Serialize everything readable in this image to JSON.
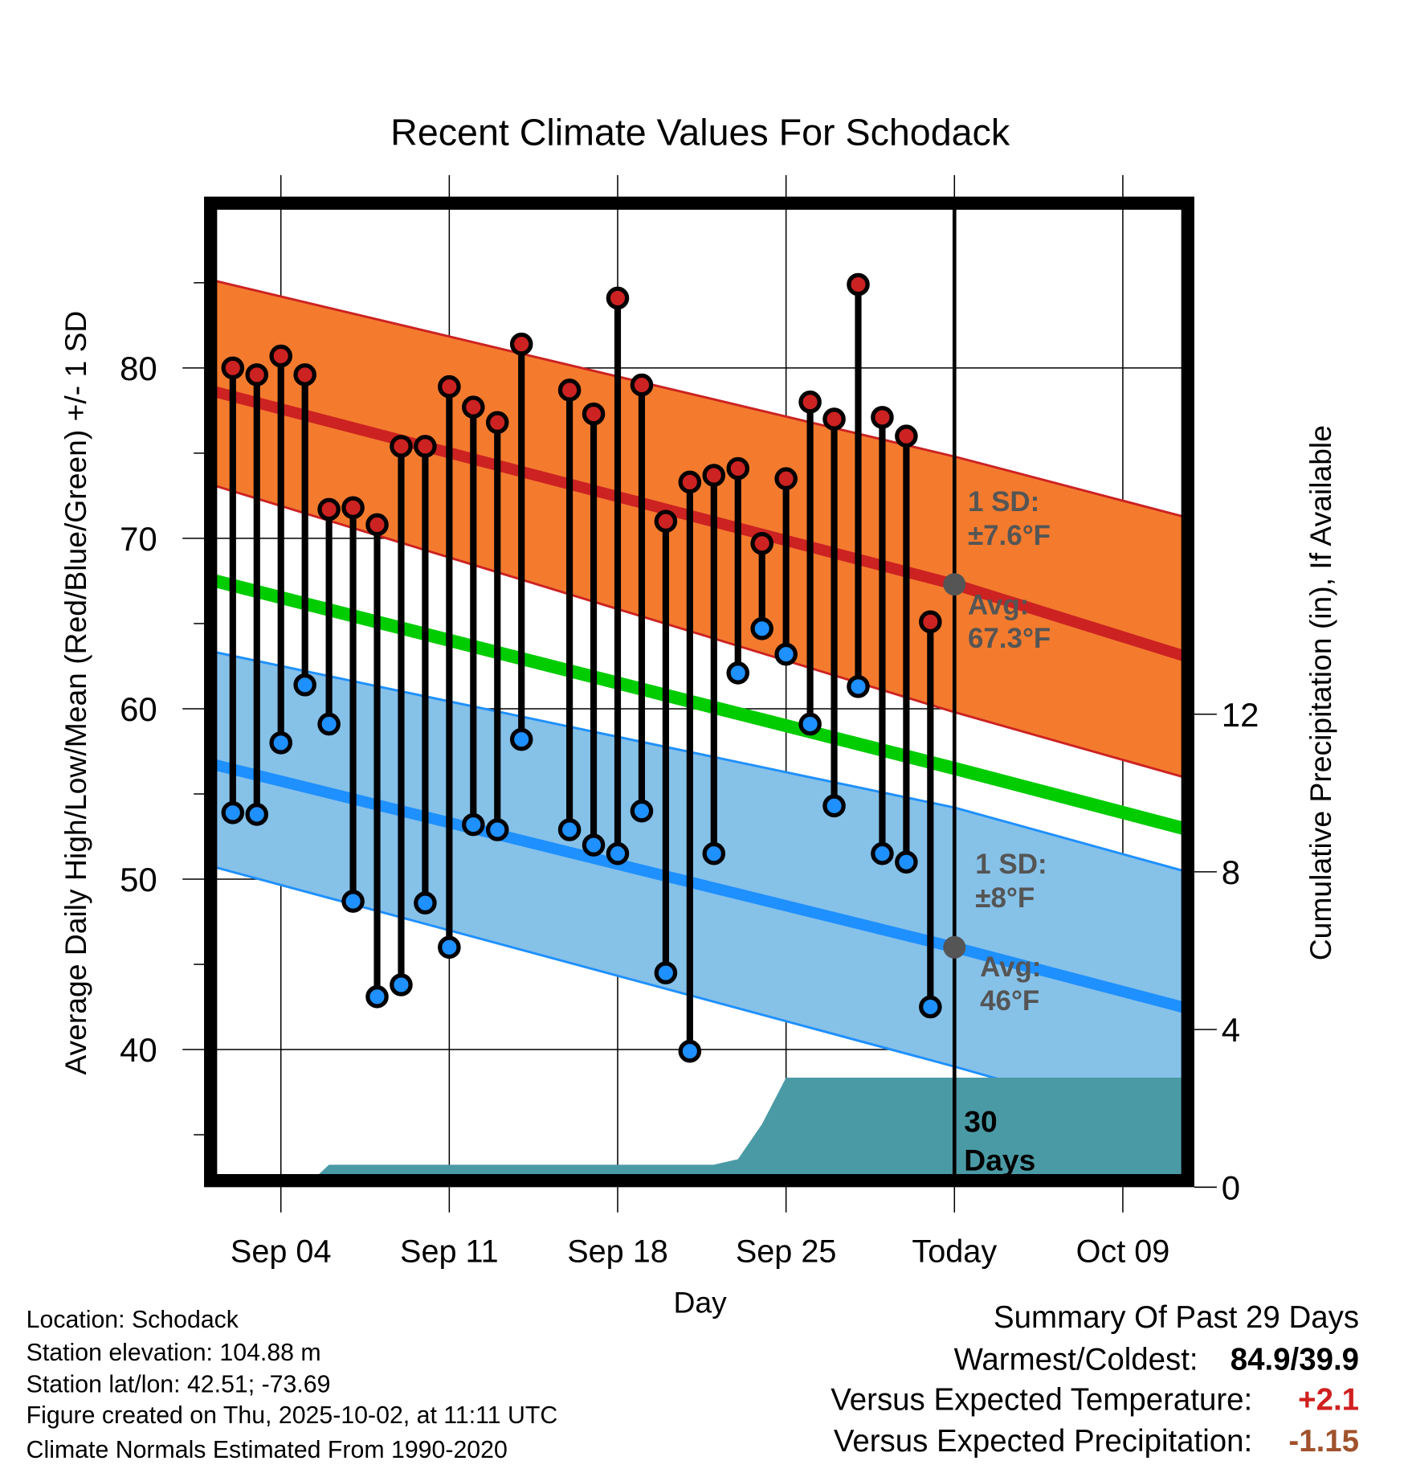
{
  "chart_data": {
    "type": "line",
    "title": "Recent Climate Values For Schodack",
    "xlabel": "Day",
    "ylabel": "Average Daily High/Low/Mean (Red/Blue/Green) +/- 1 SD",
    "y2label": "Cumulative Precipitation (in), If Available",
    "ylim": [
      32.4,
      89.6
    ],
    "y2lim": [
      0,
      16.6
    ],
    "yticks": [
      "40",
      "50",
      "60",
      "70",
      "80"
    ],
    "y2ticks": [
      "0",
      "4",
      "8",
      "12"
    ],
    "xticks": [
      {
        "date": "2025-09-04",
        "label": "Sep 04"
      },
      {
        "date": "2025-09-11",
        "label": "Sep 11"
      },
      {
        "date": "2025-09-18",
        "label": "Sep 18"
      },
      {
        "date": "2025-09-25",
        "label": "Sep 25"
      },
      {
        "date": "2025-10-02",
        "label": "Today"
      },
      {
        "date": "2025-10-09",
        "label": "Oct 09"
      }
    ],
    "grid": true,
    "observations": [
      {
        "date": "2025-09-02",
        "high": 80.0,
        "low": 53.9
      },
      {
        "date": "2025-09-03",
        "high": 79.6,
        "low": 53.8
      },
      {
        "date": "2025-09-04",
        "high": 80.7,
        "low": 58.0
      },
      {
        "date": "2025-09-05",
        "high": 79.6,
        "low": 61.4
      },
      {
        "date": "2025-09-06",
        "high": 71.7,
        "low": 59.1
      },
      {
        "date": "2025-09-07",
        "high": 71.8,
        "low": 48.7
      },
      {
        "date": "2025-09-08",
        "high": 70.8,
        "low": 43.1
      },
      {
        "date": "2025-09-09",
        "high": 75.4,
        "low": 43.8
      },
      {
        "date": "2025-09-10",
        "high": 75.4,
        "low": 48.6
      },
      {
        "date": "2025-09-11",
        "high": 78.9,
        "low": 46.0
      },
      {
        "date": "2025-09-12",
        "high": 77.7,
        "low": 53.2
      },
      {
        "date": "2025-09-13",
        "high": 76.8,
        "low": 52.9
      },
      {
        "date": "2025-09-14",
        "high": 81.4,
        "low": 58.2
      },
      {
        "date": "2025-09-16",
        "high": 78.7,
        "low": 52.9
      },
      {
        "date": "2025-09-17",
        "high": 77.3,
        "low": 52.0
      },
      {
        "date": "2025-09-18",
        "high": 84.1,
        "low": 51.5
      },
      {
        "date": "2025-09-19",
        "high": 79.0,
        "low": 54.0
      },
      {
        "date": "2025-09-20",
        "high": 71.0,
        "low": 44.5
      },
      {
        "date": "2025-09-21",
        "high": 73.3,
        "low": 39.9
      },
      {
        "date": "2025-09-22",
        "high": 73.7,
        "low": 51.5
      },
      {
        "date": "2025-09-23",
        "high": 74.1,
        "low": 62.1
      },
      {
        "date": "2025-09-24",
        "high": 69.7,
        "low": 64.7
      },
      {
        "date": "2025-09-25",
        "high": 73.5,
        "low": 63.2
      },
      {
        "date": "2025-09-26",
        "high": 78.0,
        "low": 59.1
      },
      {
        "date": "2025-09-27",
        "high": 77.0,
        "low": 54.3
      },
      {
        "date": "2025-09-28",
        "high": 84.9,
        "low": 61.3
      },
      {
        "date": "2025-09-29",
        "high": 77.1,
        "low": 51.5
      },
      {
        "date": "2025-09-30",
        "high": 76.0,
        "low": 51.0
      },
      {
        "date": "2025-10-01",
        "high": 65.1,
        "low": 42.5
      }
    ],
    "normals": {
      "dates": [
        "2025-09-01",
        "2025-10-02",
        "2025-10-12"
      ],
      "avg_high": [
        78.7,
        67.3,
        62.9
      ],
      "avg_high_plus_sd": [
        85.2,
        74.8,
        71.1
      ],
      "avg_high_minus_sd": [
        73.2,
        59.8,
        55.8
      ],
      "mean": [
        67.6,
        56.5,
        52.8
      ],
      "avg_low": [
        56.8,
        46.0,
        42.3
      ],
      "avg_low_plus_sd": [
        63.4,
        54.2,
        50.3
      ],
      "avg_low_minus_sd": [
        50.8,
        39.0,
        35.0
      ]
    },
    "precipitation_cumulative": [
      {
        "date": "2025-09-01",
        "value": 0
      },
      {
        "date": "2025-09-05",
        "value": 0
      },
      {
        "date": "2025-09-06",
        "value": 0.57
      },
      {
        "date": "2025-09-22",
        "value": 0.57
      },
      {
        "date": "2025-09-23",
        "value": 0.71
      },
      {
        "date": "2025-09-24",
        "value": 1.6
      },
      {
        "date": "2025-09-25",
        "value": 2.78
      },
      {
        "date": "2025-10-12",
        "value": 2.78
      }
    ],
    "annotations": {
      "high_sd_l1": "1 SD:",
      "high_sd_l2": "±7.6°F",
      "high_avg_l1": "Avg:",
      "high_avg_l2": "67.3°F",
      "low_sd_l1": "1 SD:",
      "low_sd_l2": "±8°F",
      "low_avg_l1": "Avg:",
      "low_avg_l2": "46°F",
      "window_l1": "30",
      "window_l2": "Days"
    },
    "colors": {
      "high_band": "#f47b2e",
      "high_line": "#cc2222",
      "mean_line": "#00cc00",
      "low_band": "#86c1e8",
      "low_line": "#1e90ff",
      "precip": "#4a9aa5",
      "high_point": "#cc2222",
      "low_point": "#1e90ff"
    }
  },
  "info": {
    "location": "Location: Schodack",
    "elevation": "Station elevation: 104.88 m",
    "latlon": "Station lat/lon: 42.51; -73.69",
    "created": "Figure created on Thu, 2025-10-02, at 11:11 UTC",
    "normals": "Climate Normals Estimated From 1990-2020"
  },
  "summary": {
    "title": "Summary Of Past 29 Days",
    "warm_cold_label": "Warmest/Coldest:",
    "warm_cold_value": "84.9/39.9",
    "temp_label": "Versus Expected Temperature:",
    "temp_value": "+2.1",
    "temp_color": "#d02020",
    "precip_label": "Versus Expected Precipitation:",
    "precip_value": "-1.15",
    "precip_color": "#a0522d"
  }
}
